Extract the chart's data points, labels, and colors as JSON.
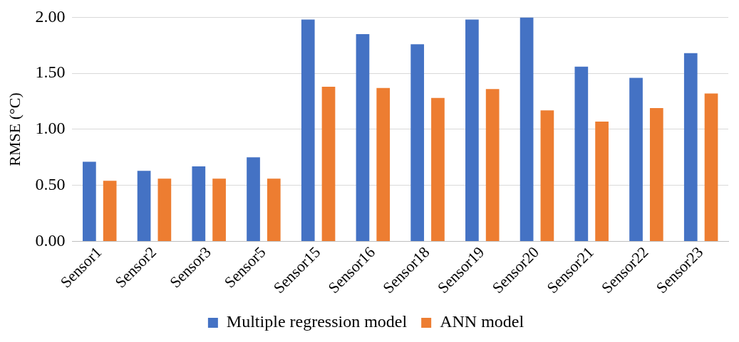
{
  "chart_data": {
    "type": "bar",
    "ylabel": "RMSE (°C)",
    "categories": [
      "Sensor1",
      "Sensor2",
      "Sensor3",
      "Sensor5",
      "Sensor15",
      "Sensor16",
      "Sensor18",
      "Sensor19",
      "Sensor20",
      "Sensor21",
      "Sensor22",
      "Sensor23"
    ],
    "series": [
      {
        "name": "Multiple regression model",
        "color": "#4472c4",
        "values": [
          0.71,
          0.63,
          0.67,
          0.75,
          1.98,
          1.85,
          1.76,
          1.98,
          2.0,
          1.56,
          1.46,
          1.68
        ]
      },
      {
        "name": "ANN model",
        "color": "#ed7d31",
        "values": [
          0.54,
          0.56,
          0.56,
          0.56,
          1.38,
          1.37,
          1.28,
          1.36,
          1.17,
          1.07,
          1.19,
          1.32
        ]
      }
    ],
    "ylim": [
      0,
      2
    ],
    "yticks": [
      {
        "value": 0,
        "label": "0.00"
      },
      {
        "value": 0.5,
        "label": "0.50"
      },
      {
        "value": 1,
        "label": "1.00"
      },
      {
        "value": 1.5,
        "label": "1.50"
      },
      {
        "value": 2,
        "label": "2.00"
      }
    ],
    "grid": "y",
    "legend": "bottom"
  }
}
